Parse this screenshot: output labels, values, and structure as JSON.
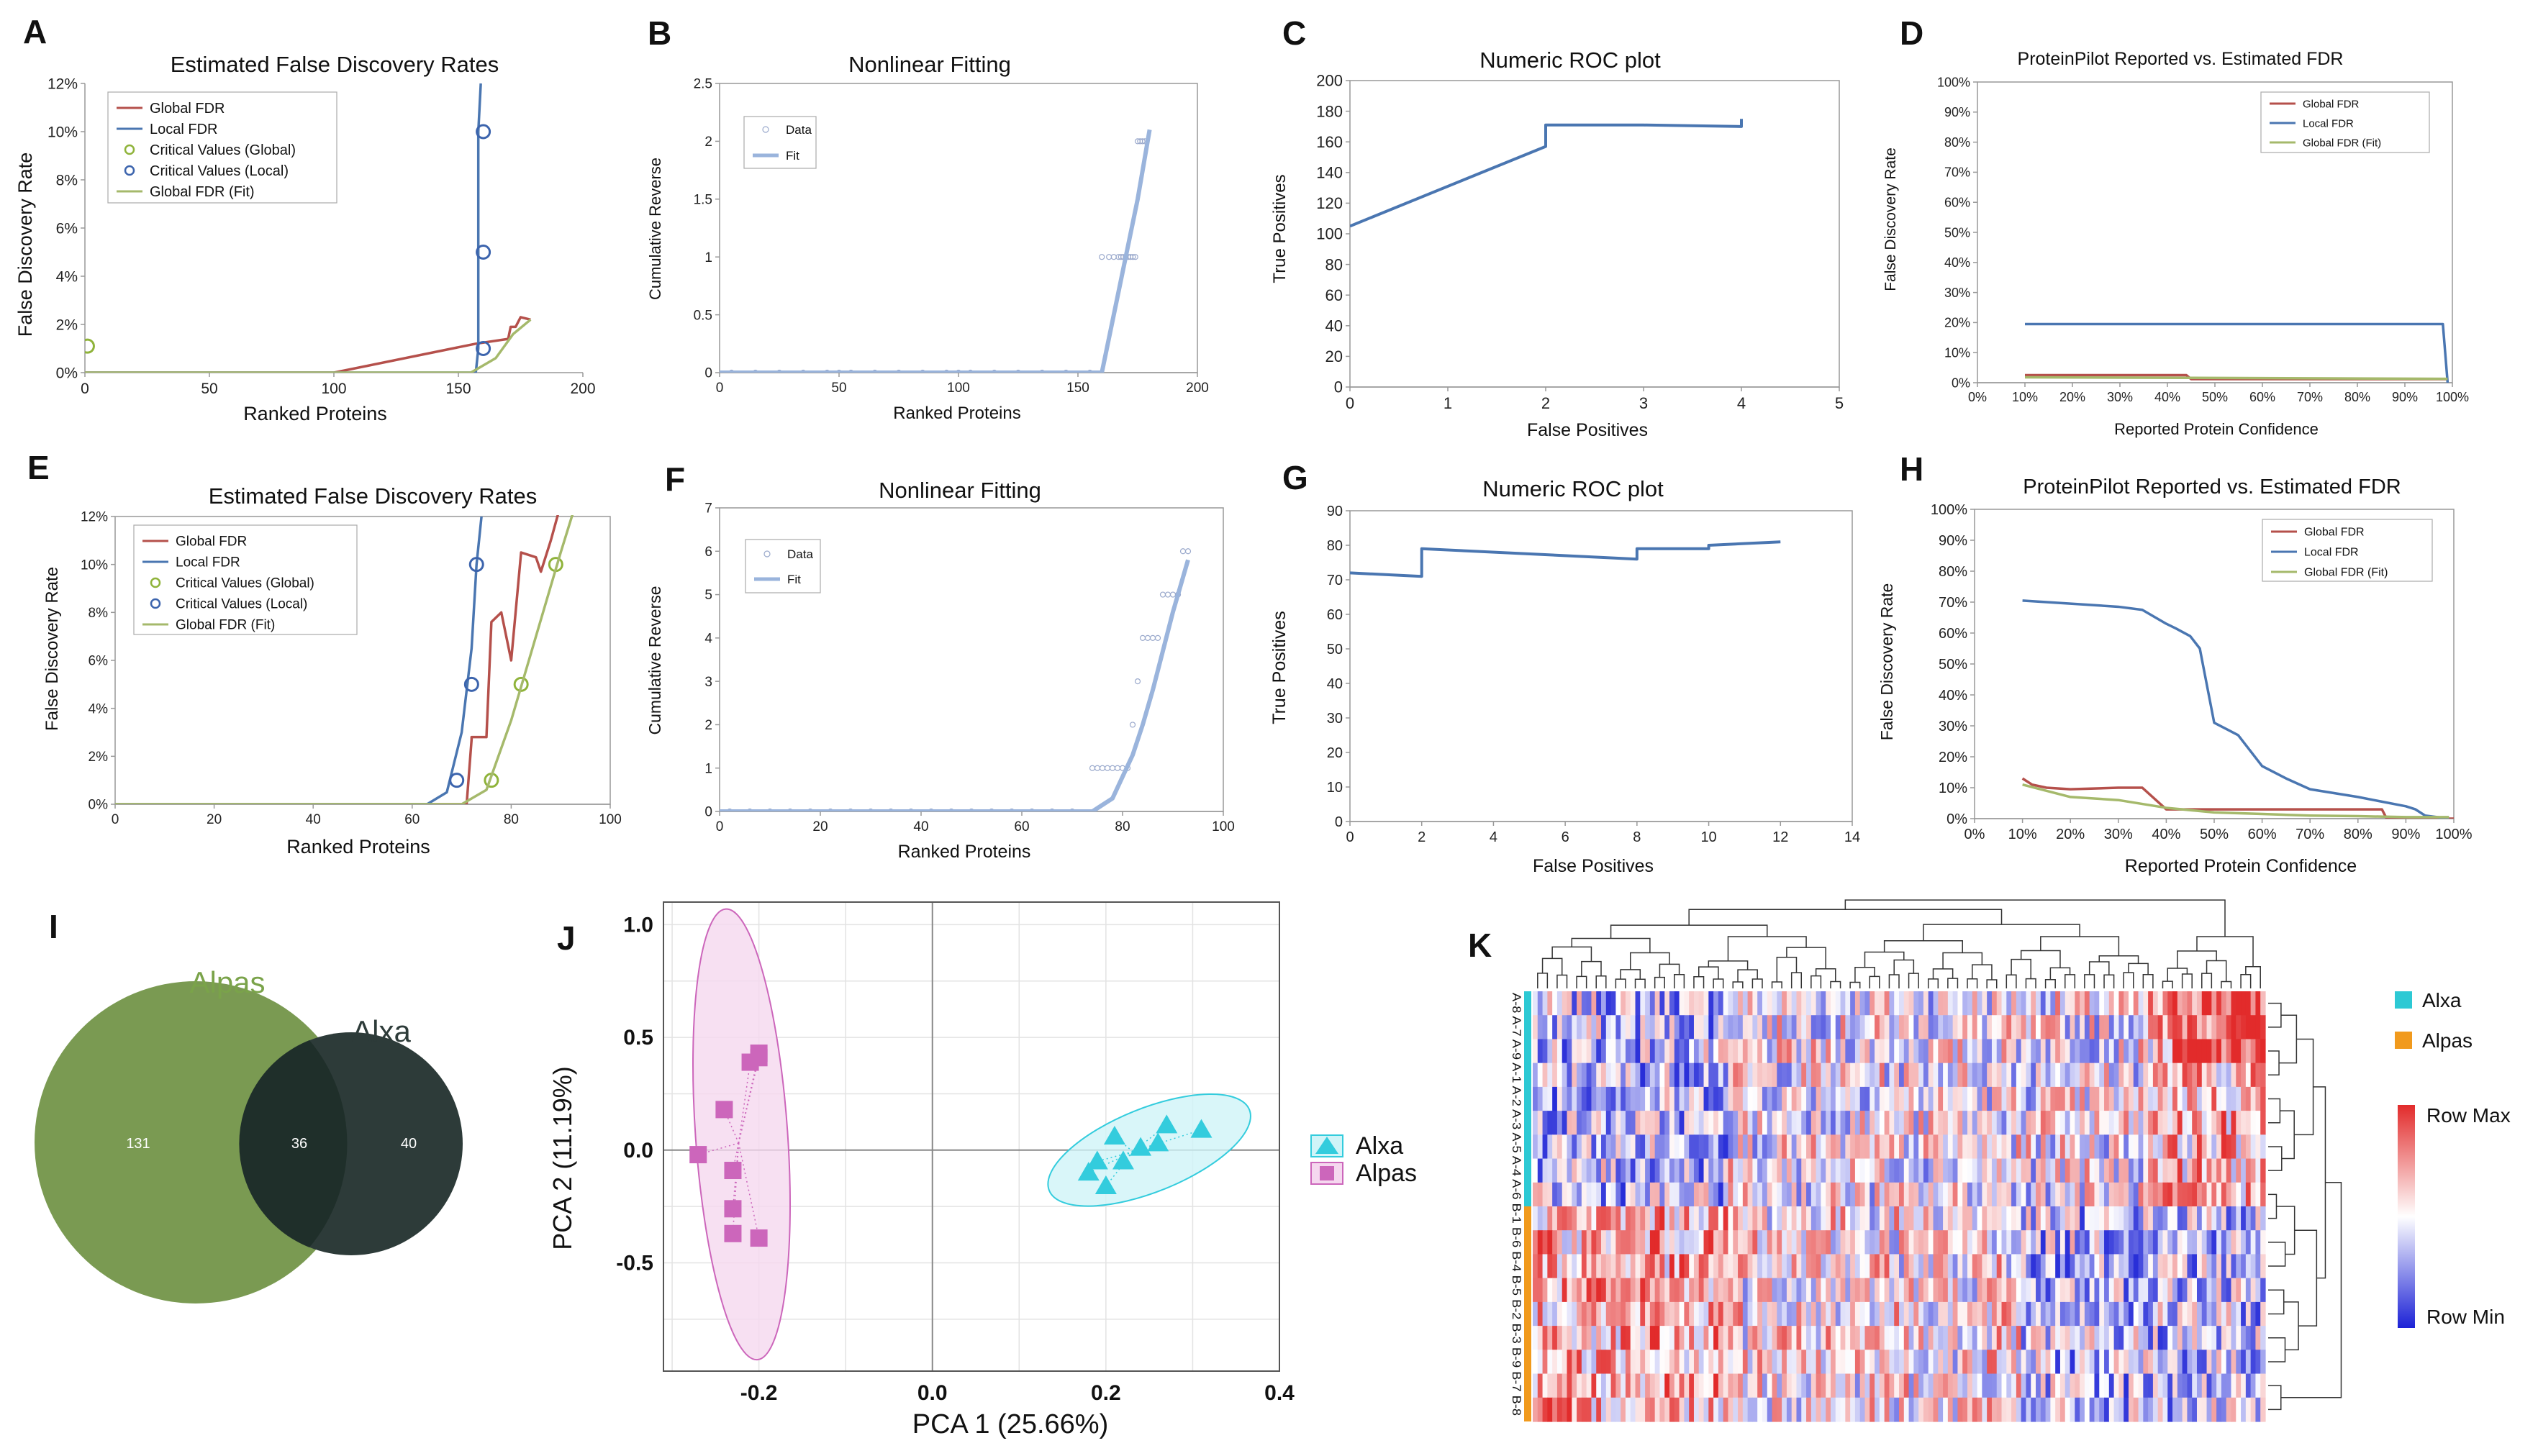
{
  "colors": {
    "global": "#b5504b",
    "local": "#4a76b1",
    "critGlobal": "#8fb33a",
    "critLocal": "#3c64ad",
    "fit": "#a5b96b",
    "roc": "#4a76b1",
    "dataPt": "#9aa9cc",
    "fitLine": "#9ab4dc",
    "alxa": "#33ccdd",
    "alpas": "#cc66bb",
    "alpasEllipse": "#f5d8ef",
    "alxaEllipse": "#cff4f8",
    "vennAlpas": "#7a9a52",
    "vennAlxa": "#2d3b39",
    "vennOverlap": "#1f2f2a",
    "hmAlxa": "#2dc9d4",
    "hmAlpas": "#f19a1d",
    "hmMax": "#e22b2b",
    "hmMin": "#1c22d6"
  },
  "panels": {
    "A": {
      "letter": "A",
      "title": "Estimated False Discovery Rates",
      "xlabel": "Ranked  Proteins",
      "ylabel": "False Discovery Rate",
      "legend": [
        "Global FDR",
        "Local FDR",
        "Critical Values (Global)",
        "Critical Values (Local)",
        "Global FDR (Fit)"
      ]
    },
    "B": {
      "letter": "B",
      "title": "Nonlinear Fitting",
      "xlabel": "Ranked  Proteins",
      "ylabel": "Cumulative Reverse",
      "legend": [
        "Data",
        "Fit"
      ]
    },
    "C": {
      "letter": "C",
      "title": "Numeric ROC plot",
      "xlabel": "False Positives",
      "ylabel": "True Positives"
    },
    "D": {
      "letter": "D",
      "title": "ProteinPilot Reported vs. Estimated FDR",
      "xlabel": "Reported Protein Confidence",
      "ylabel": "False Discovery Rate",
      "legend": [
        "Global FDR",
        "Local FDR",
        "Global FDR (Fit)"
      ]
    },
    "E": {
      "letter": "E",
      "title": "Estimated False Discovery Rates",
      "xlabel": "Ranked Proteins",
      "ylabel": "False Discovery Rate",
      "legend": [
        "Global FDR",
        "Local FDR",
        "Critical Values (Global)",
        "Critical Values (Local)",
        "Global FDR (Fit)"
      ]
    },
    "F": {
      "letter": "F",
      "title": "Nonlinear Fitting",
      "xlabel": "Ranked Proteins",
      "ylabel": "Cumulative Reverse",
      "legend": [
        "Data",
        "Fit"
      ]
    },
    "G": {
      "letter": "G",
      "title": "Numeric ROC plot",
      "xlabel": "False Positives",
      "ylabel": "True Positives"
    },
    "H": {
      "letter": "H",
      "title": "ProteinPilot Reported vs. Estimated FDR",
      "xlabel": "Reported Protein Confidence",
      "ylabel": "False Discovery Rate",
      "legend": [
        "Global FDR",
        "Local FDR",
        "Global FDR (Fit)"
      ]
    },
    "I": {
      "letter": "I",
      "setA": "Alpas",
      "setB": "Alxa",
      "onlyA": "131",
      "both": "36",
      "onlyB": "40"
    },
    "J": {
      "letter": "J",
      "xlabel": "PCA 1 (25.66%)",
      "ylabel": "PCA 2 (11.19%)",
      "legend": [
        "Alxa",
        "Alpas"
      ]
    },
    "K": {
      "letter": "K",
      "legend": [
        "Alxa",
        "Alpas"
      ],
      "scaleMax": "Row Max",
      "scaleMin": "Row Min",
      "rowLabels": "A-8 A-7 A-9 A-1 A-2 A-3 A-5 A-4 A-6 B-1 B-6 B-4 B-5 B-2 B-3 B-9 B-7 B-8"
    }
  },
  "chart_data": [
    {
      "id": "A",
      "type": "line",
      "xlim": [
        0,
        200
      ],
      "ylim": [
        0,
        12
      ],
      "xticks": [
        "0",
        "50",
        "100",
        "150",
        "200"
      ],
      "yticks": [
        "0%",
        "2%",
        "4%",
        "6%",
        "8%",
        "10%",
        "12%"
      ],
      "series": [
        {
          "name": "Global FDR",
          "x": [
            0,
            100,
            157,
            170,
            171,
            173,
            175,
            179
          ],
          "y": [
            0,
            0,
            1.2,
            1.4,
            1.9,
            1.9,
            2.3,
            2.2
          ]
        },
        {
          "name": "Local FDR",
          "x": [
            0,
            157,
            158,
            158,
            159
          ],
          "y": [
            0,
            0,
            1,
            10,
            12
          ]
        },
        {
          "name": "Critical Values (Global)",
          "x": [
            1
          ],
          "y": [
            1.1
          ]
        },
        {
          "name": "Critical Values (Local)",
          "x": [
            160,
            160,
            160
          ],
          "y": [
            1,
            5,
            10
          ]
        },
        {
          "name": "Global FDR (Fit)",
          "x": [
            0,
            155,
            165,
            172,
            179
          ],
          "y": [
            0,
            0,
            0.6,
            1.6,
            2.2
          ]
        }
      ]
    },
    {
      "id": "B",
      "type": "scatter",
      "xlim": [
        0,
        200
      ],
      "ylim": [
        0,
        2.5
      ],
      "xticks": [
        "0",
        "50",
        "100",
        "150",
        "200"
      ],
      "yticks": [
        "0",
        "0.5",
        "1",
        "1.5",
        "2",
        "2.5"
      ],
      "series": [
        {
          "name": "Data",
          "x": [
            5,
            15,
            25,
            35,
            45,
            50,
            55,
            65,
            75,
            85,
            95,
            100,
            105,
            115,
            125,
            135,
            145,
            155,
            160,
            163,
            165,
            167,
            168,
            169,
            170,
            171,
            172,
            173,
            174,
            175,
            176,
            177,
            178
          ],
          "y": [
            0,
            0,
            0,
            0,
            0,
            0,
            0,
            0,
            0,
            0,
            0,
            0,
            0,
            0,
            0,
            0,
            0,
            0,
            1,
            1,
            1,
            1,
            1,
            1,
            1,
            1,
            1,
            1,
            1,
            2,
            2,
            2,
            2
          ]
        },
        {
          "name": "Fit",
          "x": [
            0,
            160,
            165,
            170,
            175,
            180
          ],
          "y": [
            0,
            0,
            0.5,
            1,
            1.5,
            2.1
          ]
        }
      ]
    },
    {
      "id": "C",
      "type": "line",
      "xlim": [
        0,
        5
      ],
      "ylim": [
        0,
        200
      ],
      "xticks": [
        "0",
        "1",
        "2",
        "3",
        "4",
        "5"
      ],
      "yticks": [
        "0",
        "20",
        "40",
        "60",
        "80",
        "100",
        "120",
        "140",
        "160",
        "180",
        "200"
      ],
      "series": [
        {
          "name": "ROC",
          "x": [
            0,
            2,
            2,
            3,
            4,
            4,
            4
          ],
          "y": [
            105,
            157,
            171,
            171,
            170,
            170,
            175
          ]
        }
      ]
    },
    {
      "id": "D",
      "type": "line",
      "xlim": [
        0,
        100
      ],
      "ylim": [
        0,
        100
      ],
      "xticks": [
        "0%",
        "10%",
        "20%",
        "30%",
        "40%",
        "50%",
        "60%",
        "70%",
        "80%",
        "90%",
        "100%"
      ],
      "yticks": [
        "0%",
        "10%",
        "20%",
        "30%",
        "40%",
        "50%",
        "60%",
        "70%",
        "80%",
        "90%",
        "100%"
      ],
      "series": [
        {
          "name": "Global FDR",
          "x": [
            10,
            44,
            45,
            99
          ],
          "y": [
            2.5,
            2.5,
            1.2,
            1.2
          ]
        },
        {
          "name": "Local FDR",
          "x": [
            10,
            98,
            99
          ],
          "y": [
            19.5,
            19.5,
            0
          ]
        },
        {
          "name": "Global FDR (Fit)",
          "x": [
            10,
            99
          ],
          "y": [
            1.8,
            1.3
          ]
        }
      ]
    },
    {
      "id": "E",
      "type": "line",
      "xlim": [
        0,
        100
      ],
      "ylim": [
        0,
        12
      ],
      "xticks": [
        "0",
        "20",
        "40",
        "60",
        "80",
        "100"
      ],
      "yticks": [
        "0%",
        "2%",
        "4%",
        "6%",
        "8%",
        "10%",
        "12%"
      ],
      "series": [
        {
          "name": "Global FDR",
          "x": [
            0,
            71,
            72,
            72,
            75,
            76,
            78,
            80,
            82,
            85,
            86,
            88,
            90,
            92
          ],
          "y": [
            0,
            0,
            2.7,
            2.8,
            2.8,
            7.6,
            8,
            6,
            10.5,
            10.3,
            9.7,
            11,
            12.5,
            13.5
          ]
        },
        {
          "name": "Local FDR",
          "x": [
            0,
            63,
            67,
            70,
            72,
            73,
            74
          ],
          "y": [
            0,
            0,
            0.5,
            3,
            6.5,
            10,
            12
          ]
        },
        {
          "name": "Critical Values (Global)",
          "x": [
            76,
            82,
            89
          ],
          "y": [
            1,
            5,
            10
          ]
        },
        {
          "name": "Critical Values (Local)",
          "x": [
            69,
            72,
            73
          ],
          "y": [
            1,
            5,
            10
          ]
        },
        {
          "name": "Global FDR (Fit)",
          "x": [
            0,
            70,
            75,
            80,
            85,
            90,
            93
          ],
          "y": [
            0,
            0,
            0.6,
            3.5,
            7,
            10.5,
            12.5
          ]
        }
      ]
    },
    {
      "id": "F",
      "type": "scatter",
      "xlim": [
        0,
        100
      ],
      "ylim": [
        0,
        7
      ],
      "xticks": [
        "0",
        "20",
        "40",
        "60",
        "80",
        "100"
      ],
      "yticks": [
        "0",
        "1",
        "2",
        "3",
        "4",
        "5",
        "6",
        "7"
      ],
      "series": [
        {
          "name": "Data",
          "x": [
            2,
            6,
            10,
            14,
            18,
            22,
            26,
            30,
            34,
            38,
            42,
            46,
            50,
            54,
            58,
            62,
            66,
            70,
            74,
            75,
            76,
            77,
            78,
            79,
            80,
            81,
            82,
            83,
            84,
            85,
            86,
            87,
            88,
            89,
            90,
            91,
            92,
            93
          ],
          "y": [
            0,
            0,
            0,
            0,
            0,
            0,
            0,
            0,
            0,
            0,
            0,
            0,
            0,
            0,
            0,
            0,
            0,
            0,
            1,
            1,
            1,
            1,
            1,
            1,
            1,
            1,
            2,
            3,
            4,
            4,
            4,
            4,
            5,
            5,
            5,
            5,
            6,
            6
          ]
        },
        {
          "name": "Fit",
          "x": [
            0,
            74,
            78,
            80,
            82,
            84,
            86,
            88,
            90,
            92,
            93
          ],
          "y": [
            0,
            0,
            0.3,
            0.8,
            1.3,
            2,
            2.8,
            3.7,
            4.6,
            5.4,
            5.8
          ]
        }
      ]
    },
    {
      "id": "G",
      "type": "line",
      "xlim": [
        0,
        14
      ],
      "ylim": [
        0,
        90
      ],
      "xticks": [
        "0",
        "2",
        "4",
        "6",
        "8",
        "10",
        "12",
        "14"
      ],
      "yticks": [
        "0",
        "10",
        "20",
        "30",
        "40",
        "50",
        "60",
        "70",
        "80",
        "90"
      ],
      "series": [
        {
          "name": "ROC",
          "x": [
            0,
            2,
            2,
            8,
            8,
            10,
            10,
            12
          ],
          "y": [
            72,
            71,
            79,
            76,
            79,
            79,
            80,
            81
          ]
        }
      ]
    },
    {
      "id": "H",
      "type": "line",
      "xlim": [
        0,
        100
      ],
      "ylim": [
        0,
        100
      ],
      "xticks": [
        "0%",
        "10%",
        "20%",
        "30%",
        "40%",
        "50%",
        "60%",
        "70%",
        "80%",
        "90%",
        "100%"
      ],
      "yticks": [
        "0%",
        "10%",
        "20%",
        "30%",
        "40%",
        "50%",
        "60%",
        "70%",
        "80%",
        "90%",
        "100%"
      ],
      "series": [
        {
          "name": "Global FDR",
          "x": [
            10,
            12,
            15,
            20,
            30,
            35,
            40,
            50,
            60,
            70,
            80,
            85,
            86,
            100
          ],
          "y": [
            13,
            11,
            10,
            9.5,
            10,
            10,
            3,
            3,
            3,
            3,
            3,
            3,
            0,
            0
          ]
        },
        {
          "name": "Local FDR",
          "x": [
            10,
            20,
            25,
            30,
            35,
            40,
            42,
            45,
            47,
            50,
            55,
            60,
            65,
            70,
            80,
            90,
            92,
            94,
            99
          ],
          "y": [
            70.5,
            69.5,
            69,
            68.5,
            67.5,
            63,
            61.5,
            59,
            55,
            31,
            27,
            17,
            13,
            9.5,
            7,
            4,
            3,
            1,
            0
          ]
        },
        {
          "name": "Global FDR (Fit)",
          "x": [
            10,
            15,
            20,
            30,
            40,
            50,
            60,
            70,
            80,
            90,
            99
          ],
          "y": [
            11,
            9,
            7,
            6,
            3.5,
            2,
            1.5,
            1,
            0.8,
            0.5,
            0.5
          ]
        }
      ]
    },
    {
      "id": "J",
      "type": "scatter",
      "xlim": [
        -0.31,
        0.4
      ],
      "ylim": [
        -0.98,
        1.1
      ],
      "xticks": [
        "-0.2",
        "0.0",
        "0.2",
        "0.4"
      ],
      "yticks": [
        "-0.5",
        "0.0",
        "0.5",
        "1.0"
      ],
      "series": [
        {
          "name": "Alxa",
          "x": [
            0.18,
            0.2,
            0.21,
            0.22,
            0.24,
            0.26,
            0.27,
            0.31,
            0.19
          ],
          "y": [
            -0.1,
            -0.16,
            0.06,
            -0.05,
            0.01,
            0.03,
            0.11,
            0.09,
            -0.05
          ]
        },
        {
          "name": "Alpas",
          "x": [
            -0.27,
            -0.24,
            -0.23,
            -0.23,
            -0.23,
            -0.21,
            -0.2,
            -0.2,
            -0.2
          ],
          "y": [
            -0.02,
            0.18,
            -0.09,
            -0.26,
            -0.37,
            0.39,
            0.41,
            0.43,
            -0.39
          ]
        }
      ]
    }
  ]
}
